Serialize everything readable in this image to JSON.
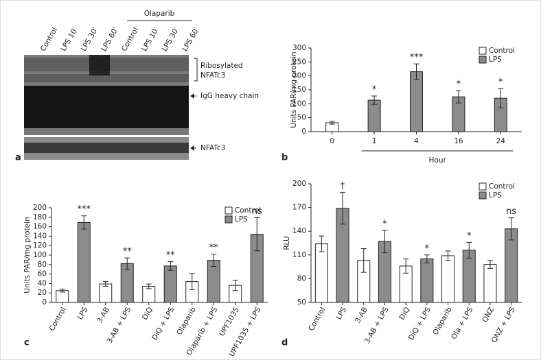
{
  "blot": {
    "panel_label": "a",
    "group_label": "Olaparib",
    "lanes": [
      "Control",
      "LPS 10′",
      "LPS 30′",
      "LPS 60′",
      "Control",
      "LPS 10′",
      "LPS 30′",
      "LPS 60′"
    ],
    "labels": [
      "Ribosylated",
      "NFATc3",
      "IgG heavy chain",
      "NFATc3"
    ]
  },
  "chart_data": [
    {
      "type": "bar",
      "panel_label": "b",
      "x_label": "Hour",
      "y_label": "Units PAR/mg protein",
      "categories": [
        "0",
        "1",
        "4",
        "16",
        "24"
      ],
      "series": [
        {
          "name": "Control",
          "color": "#ffffff",
          "values": [
            32,
            null,
            null,
            null,
            null
          ],
          "errors": [
            5,
            null,
            null,
            null,
            null
          ],
          "annotations": [
            null,
            null,
            null,
            null,
            null
          ]
        },
        {
          "name": "LPS",
          "color": "#8c8c8c",
          "values": [
            null,
            113,
            215,
            125,
            120
          ],
          "errors": [
            null,
            15,
            28,
            22,
            35
          ],
          "annotations": [
            null,
            "*",
            "***",
            "*",
            "*"
          ]
        }
      ],
      "ylim": [
        0,
        300
      ],
      "yticks": [
        0,
        50,
        100,
        150,
        200,
        250,
        300
      ],
      "legend": "upper right"
    },
    {
      "type": "bar",
      "panel_label": "c",
      "y_label": "Units PAR/mg protein",
      "categories": [
        "Control",
        "LPS",
        "3-AB",
        "3-AB + LPS",
        "DiQ",
        "DiQ + LPS",
        "Olaparib",
        "Olaparib + LPS",
        "UPF1035",
        "UPF1035 + LPS"
      ],
      "series": [
        {
          "name": "Control",
          "color": "#ffffff",
          "values": [
            25,
            null,
            39,
            null,
            34,
            null,
            44,
            null,
            36,
            null
          ],
          "errors": [
            3,
            null,
            5,
            null,
            5,
            null,
            17,
            null,
            11,
            null
          ],
          "annotations": [
            null,
            null,
            null,
            null,
            null,
            null,
            null,
            null,
            null,
            null
          ]
        },
        {
          "name": "LPS",
          "color": "#8c8c8c",
          "values": [
            null,
            169,
            null,
            82,
            null,
            77,
            null,
            89,
            null,
            144
          ],
          "errors": [
            null,
            14,
            null,
            12,
            null,
            9,
            null,
            13,
            null,
            35
          ],
          "annotations": [
            null,
            "***",
            null,
            "**",
            null,
            "**",
            null,
            "**",
            null,
            "ns"
          ]
        }
      ],
      "ylim": [
        0,
        200
      ],
      "yticks": [
        0,
        20,
        40,
        60,
        80,
        100,
        120,
        140,
        160,
        180,
        200
      ],
      "legend": "upper right"
    },
    {
      "type": "bar",
      "panel_label": "d",
      "y_label": "RLU",
      "categories": [
        "Control",
        "LPS",
        "3-AB",
        "3-AB + LPS",
        "DiQ",
        "DiQ + LPS",
        "Olaparib",
        "Ola + LPS",
        "QNZ",
        "QNZ + LPS"
      ],
      "series": [
        {
          "name": "Control",
          "color": "#ffffff",
          "values": [
            124,
            null,
            103,
            null,
            96,
            null,
            109,
            null,
            98,
            null
          ],
          "errors": [
            10,
            null,
            15,
            null,
            9,
            null,
            6,
            null,
            5,
            null
          ],
          "annotations": [
            null,
            null,
            null,
            null,
            null,
            null,
            null,
            null,
            null,
            null
          ]
        },
        {
          "name": "LPS",
          "color": "#8c8c8c",
          "values": [
            null,
            169,
            null,
            127,
            null,
            105,
            null,
            116,
            null,
            143
          ],
          "errors": [
            null,
            20,
            null,
            14,
            null,
            5,
            null,
            10,
            null,
            14
          ],
          "annotations": [
            null,
            "†",
            null,
            "*",
            null,
            "*",
            null,
            "*",
            null,
            "ns"
          ]
        }
      ],
      "ylim": [
        50,
        200
      ],
      "yticks": [
        50,
        80,
        110,
        140,
        170,
        200
      ],
      "legend": "upper right"
    }
  ]
}
